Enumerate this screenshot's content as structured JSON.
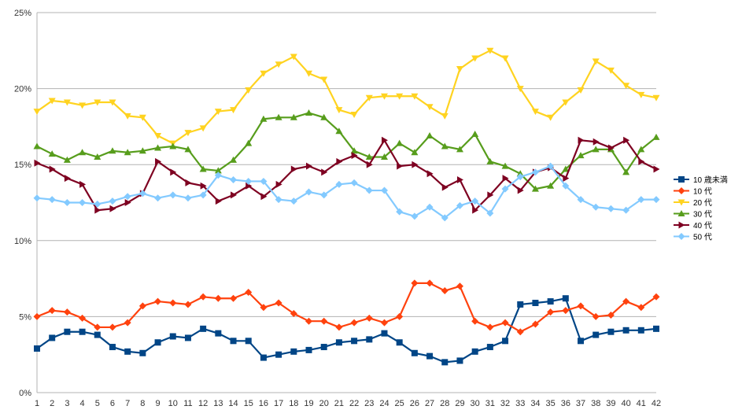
{
  "chart_data": {
    "type": "line",
    "title": "",
    "xlabel": "",
    "ylabel": "",
    "x": [
      1,
      2,
      3,
      4,
      5,
      6,
      7,
      8,
      9,
      10,
      11,
      12,
      13,
      14,
      15,
      16,
      17,
      18,
      19,
      20,
      21,
      22,
      23,
      24,
      25,
      26,
      27,
      28,
      29,
      30,
      31,
      32,
      33,
      34,
      35,
      36,
      37,
      38,
      39,
      40,
      41,
      42
    ],
    "x_tick_labels": [
      "1",
      "2",
      "3",
      "4",
      "5",
      "6",
      "7",
      "8",
      "9",
      "10",
      "11",
      "12",
      "13",
      "14",
      "15",
      "16",
      "17",
      "18",
      "19",
      "20",
      "21",
      "22",
      "23",
      "24",
      "25",
      "26",
      "27",
      "28",
      "29",
      "30",
      "31",
      "32",
      "33",
      "34",
      "35",
      "36",
      "37",
      "38",
      "39",
      "40",
      "41",
      "42"
    ],
    "ylim": [
      0,
      25
    ],
    "y_tick_labels": [
      "0%",
      "5%",
      "10%",
      "15%",
      "20%",
      "25%"
    ],
    "y_tick_values": [
      0,
      5,
      10,
      15,
      20,
      25
    ],
    "grid": "horizontal",
    "legend_position": "right",
    "series": [
      {
        "name": "10 歳未満",
        "color": "#004586",
        "marker": "square",
        "values": [
          2.9,
          3.6,
          4.0,
          4.0,
          3.8,
          3.0,
          2.7,
          2.6,
          3.3,
          3.7,
          3.6,
          4.2,
          3.9,
          3.4,
          3.4,
          2.3,
          2.5,
          2.7,
          2.8,
          3.0,
          3.3,
          3.4,
          3.5,
          3.9,
          3.3,
          2.6,
          2.4,
          2.0,
          2.1,
          2.7,
          3.0,
          3.4,
          5.8,
          5.9,
          6.0,
          6.2,
          3.4,
          3.8,
          4.0,
          4.1,
          4.1,
          4.2
        ]
      },
      {
        "name": "10 代",
        "color": "#ff420e",
        "marker": "diamond",
        "values": [
          5.0,
          5.4,
          5.3,
          4.9,
          4.3,
          4.3,
          4.6,
          5.7,
          6.0,
          5.9,
          5.8,
          6.3,
          6.2,
          6.2,
          6.6,
          5.6,
          5.9,
          5.2,
          4.7,
          4.7,
          4.3,
          4.6,
          4.9,
          4.6,
          5.0,
          7.2,
          7.2,
          6.7,
          7.0,
          4.7,
          4.3,
          4.6,
          4.0,
          4.5,
          5.3,
          5.4,
          5.7,
          5.0,
          5.1,
          6.0,
          5.6,
          6.3
        ]
      },
      {
        "name": "20 代",
        "color": "#ffd320",
        "marker": "triangle-down",
        "values": [
          18.5,
          19.2,
          19.1,
          18.9,
          19.1,
          19.1,
          18.2,
          18.1,
          16.9,
          16.4,
          17.1,
          17.4,
          18.5,
          18.6,
          19.9,
          21.0,
          21.6,
          22.1,
          21.0,
          20.6,
          18.6,
          18.3,
          19.4,
          19.5,
          19.5,
          19.5,
          18.8,
          18.2,
          21.3,
          22.0,
          22.5,
          22.0,
          20.0,
          18.5,
          18.1,
          19.1,
          19.9,
          21.8,
          21.2,
          20.2,
          19.6,
          19.4
        ]
      },
      {
        "name": "30 代",
        "color": "#579d1c",
        "marker": "triangle-up",
        "values": [
          16.2,
          15.7,
          15.3,
          15.8,
          15.5,
          15.9,
          15.8,
          15.9,
          16.1,
          16.2,
          16.0,
          14.7,
          14.6,
          15.3,
          16.4,
          18.0,
          18.1,
          18.1,
          18.4,
          18.1,
          17.2,
          15.9,
          15.5,
          15.5,
          16.4,
          15.8,
          16.9,
          16.2,
          16.0,
          17.0,
          15.2,
          14.9,
          14.4,
          13.4,
          13.6,
          14.7,
          15.6,
          16.0,
          16.0,
          14.5,
          16.0,
          16.8
        ]
      },
      {
        "name": "40 代",
        "color": "#7e0021",
        "marker": "triangle-right",
        "values": [
          15.1,
          14.7,
          14.1,
          13.7,
          12.0,
          12.1,
          12.5,
          13.1,
          15.2,
          14.5,
          13.8,
          13.6,
          12.6,
          13.0,
          13.6,
          12.9,
          13.7,
          14.7,
          14.9,
          14.5,
          15.2,
          15.6,
          15.0,
          16.6,
          14.9,
          15.0,
          14.4,
          13.5,
          14.0,
          12.0,
          13.0,
          14.1,
          13.3,
          14.5,
          14.8,
          14.1,
          16.6,
          16.5,
          16.1,
          16.6,
          15.2,
          14.7
        ]
      },
      {
        "name": "50 代",
        "color": "#83caff",
        "marker": "diamond",
        "values": [
          12.8,
          12.7,
          12.5,
          12.5,
          12.4,
          12.6,
          12.9,
          13.1,
          12.8,
          13.0,
          12.8,
          13.0,
          14.3,
          14.0,
          13.9,
          13.9,
          12.7,
          12.6,
          13.2,
          13.0,
          13.7,
          13.8,
          13.3,
          13.3,
          11.9,
          11.6,
          12.2,
          11.5,
          12.3,
          12.6,
          11.8,
          13.4,
          14.2,
          14.5,
          14.9,
          13.6,
          12.7,
          12.2,
          12.1,
          12.0,
          12.7,
          12.7
        ]
      }
    ]
  }
}
